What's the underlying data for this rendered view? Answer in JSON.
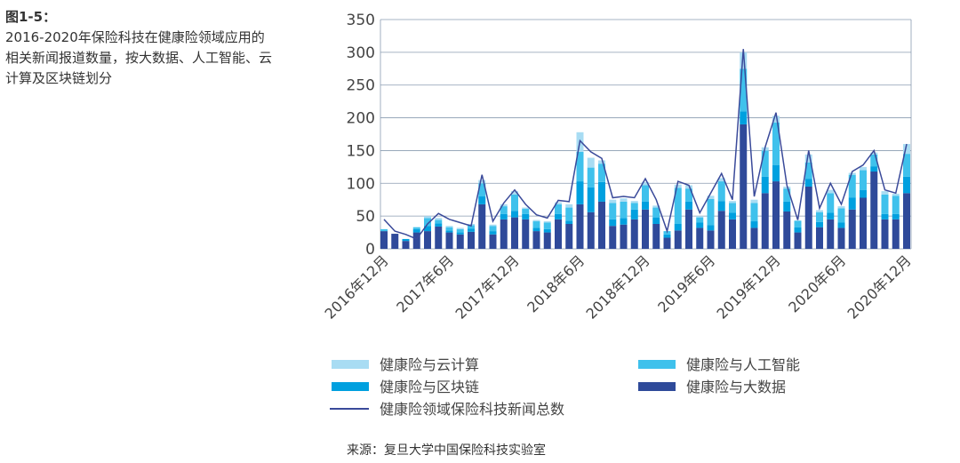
{
  "chart_data": {
    "type": "bar",
    "stacked": true,
    "label": "图1-5：",
    "title": "2016-2020年保险科技在健康险领域应用的相关新闻报道数量，按大数据、人工智能、云计算及区块链划分",
    "source": "来源：复旦大学中国保险科技实验室",
    "categories": [
      "2016年12月",
      null,
      null,
      null,
      null,
      null,
      "2017年6月",
      null,
      null,
      null,
      null,
      null,
      "2017年12月",
      null,
      null,
      null,
      null,
      null,
      "2018年6月",
      null,
      null,
      null,
      null,
      null,
      "2018年12月",
      null,
      null,
      null,
      null,
      null,
      "2019年6月",
      null,
      null,
      null,
      null,
      null,
      "2019年12月",
      null,
      null,
      null,
      null,
      null,
      "2020年6月",
      null,
      null,
      null,
      null,
      null,
      "2020年12月"
    ],
    "ylim": [
      0,
      350
    ],
    "yticks": [
      0,
      50,
      100,
      150,
      200,
      250,
      300,
      350
    ],
    "grid": true,
    "series": [
      {
        "name": "健康险与大数据",
        "color": "#2f4a9a",
        "values": [
          27,
          23,
          12,
          25,
          27,
          34,
          25,
          22,
          26,
          68,
          22,
          45,
          48,
          45,
          27,
          25,
          45,
          38,
          68,
          56,
          72,
          35,
          37,
          45,
          60,
          38,
          17,
          28,
          60,
          32,
          28,
          58,
          45,
          190,
          32,
          85,
          103,
          57,
          25,
          95,
          33,
          45,
          32,
          60,
          78,
          118,
          45,
          45,
          85
        ]
      },
      {
        "name": "健康险与区块链",
        "color": "#00a0df",
        "values": [
          0,
          0,
          3,
          5,
          8,
          5,
          3,
          3,
          5,
          12,
          5,
          8,
          10,
          8,
          5,
          5,
          8,
          5,
          35,
          38,
          30,
          10,
          10,
          15,
          12,
          10,
          5,
          10,
          12,
          8,
          8,
          15,
          10,
          20,
          10,
          25,
          25,
          15,
          8,
          12,
          8,
          10,
          8,
          18,
          12,
          8,
          8,
          8,
          25
        ]
      },
      {
        "name": "健康险与人工智能",
        "color": "#3fc1ec",
        "values": [
          3,
          0,
          0,
          3,
          12,
          5,
          5,
          5,
          5,
          20,
          8,
          12,
          25,
          8,
          10,
          10,
          15,
          20,
          45,
          30,
          28,
          25,
          25,
          10,
          25,
          15,
          5,
          55,
          20,
          8,
          40,
          30,
          15,
          65,
          28,
          40,
          65,
          20,
          10,
          25,
          15,
          30,
          22,
          35,
          30,
          18,
          30,
          28,
          35
        ]
      },
      {
        "name": "健康险与云计算",
        "color": "#a8dcf3",
        "values": [
          0,
          0,
          0,
          0,
          3,
          3,
          2,
          2,
          2,
          5,
          2,
          3,
          5,
          2,
          2,
          2,
          3,
          5,
          30,
          15,
          5,
          5,
          5,
          3,
          5,
          3,
          0,
          5,
          5,
          2,
          5,
          5,
          3,
          25,
          5,
          5,
          10,
          3,
          0,
          12,
          3,
          5,
          3,
          3,
          5,
          3,
          5,
          3,
          15
        ]
      },
      {
        "name": "健康险领域保险科技新闻总数",
        "color": "#3a4a9a",
        "type": "line",
        "values": [
          45,
          27,
          22,
          15,
          38,
          54,
          45,
          40,
          35,
          113,
          42,
          70,
          90,
          68,
          52,
          47,
          74,
          72,
          165,
          148,
          138,
          78,
          80,
          78,
          107,
          75,
          27,
          103,
          97,
          55,
          85,
          115,
          75,
          305,
          80,
          155,
          208,
          97,
          44,
          150,
          62,
          100,
          68,
          118,
          128,
          150,
          90,
          85,
          160
        ]
      }
    ]
  }
}
